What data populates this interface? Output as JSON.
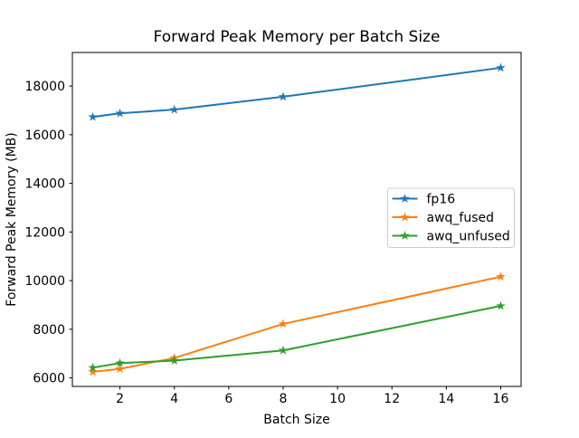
{
  "figure": {
    "background": "#ffffff",
    "frame_color": "#000000",
    "legend_border_color": "#cccccc",
    "legend_background": "#ffffff"
  },
  "chart_data": {
    "type": "line",
    "title": "Forward Peak Memory per Batch Size",
    "xlabel": "Batch Size",
    "ylabel": "Forward Peak Memory (MB)",
    "x": [
      1,
      2,
      4,
      8,
      16
    ],
    "series": [
      {
        "name": "fp16",
        "color": "#1f77b4",
        "marker": "star",
        "values": [
          16730,
          16880,
          17030,
          17560,
          18750
        ]
      },
      {
        "name": "awq_fused",
        "color": "#ff7f0e",
        "marker": "star",
        "values": [
          6250,
          6370,
          6820,
          8220,
          10160
        ]
      },
      {
        "name": "awq_unfused",
        "color": "#2ca02c",
        "marker": "star",
        "values": [
          6420,
          6610,
          6710,
          7130,
          8960
        ]
      }
    ],
    "xlim": [
      0.25,
      16.75
    ],
    "ylim": [
      5650,
      19380
    ],
    "xticks": [
      2,
      4,
      6,
      8,
      10,
      12,
      14,
      16
    ],
    "yticks": [
      6000,
      8000,
      10000,
      12000,
      14000,
      16000,
      18000
    ],
    "x_scale": "linear",
    "grid": false,
    "legend_position": "center-right"
  }
}
